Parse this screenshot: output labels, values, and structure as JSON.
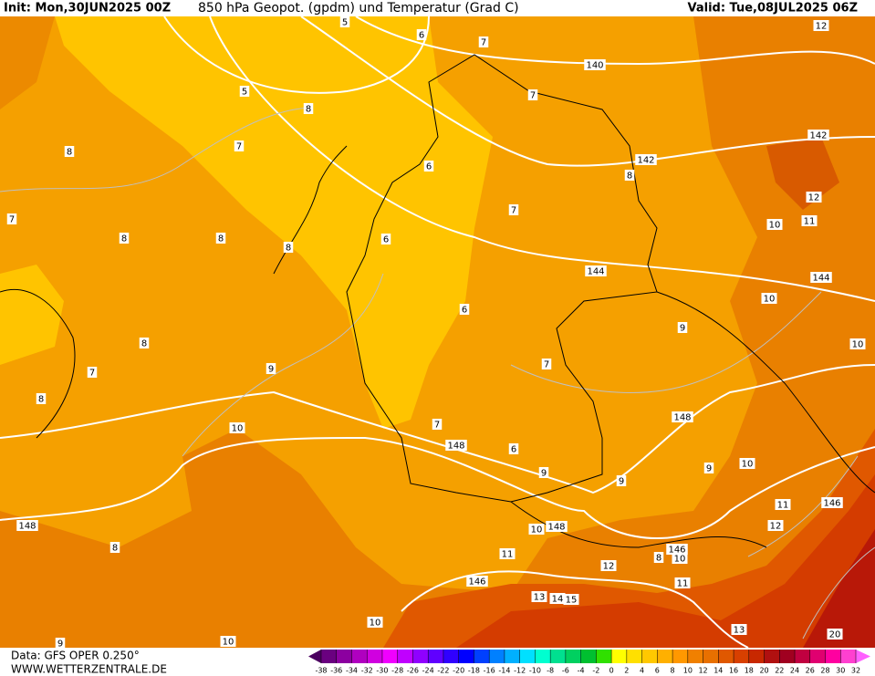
{
  "header": {
    "init": "Init: Mon,30JUN2025 00Z",
    "title": "850 hPa Geopot. (gpdm) und Temperatur (Grad C)",
    "valid": "Valid: Tue,08JUL2025 06Z"
  },
  "footer": {
    "source": "Data: GFS OPER 0.250°",
    "website": "WWW.WETTERZENTRALE.DE"
  },
  "contour_labels": [
    "5",
    "6",
    "7",
    "140",
    "12",
    "5",
    "8",
    "7",
    "7",
    "8",
    "6",
    "142",
    "142",
    "8",
    "12",
    "7",
    "7",
    "10",
    "11",
    "8",
    "8",
    "8",
    "6",
    "144",
    "144",
    "10",
    "6",
    "9",
    "10",
    "8",
    "7",
    "9",
    "7",
    "8",
    "148",
    "10",
    "7",
    "148",
    "6",
    "9",
    "9",
    "9",
    "10",
    "146",
    "11",
    "12",
    "148",
    "8",
    "10",
    "148",
    "146",
    "8",
    "10",
    "11",
    "12",
    "11",
    "146",
    "13",
    "14",
    "15",
    "10",
    "13",
    "20",
    "10",
    "9"
  ],
  "legend": {
    "ticks": [
      -38,
      -36,
      -34,
      -32,
      -30,
      -28,
      -26,
      -24,
      -22,
      -20,
      -18,
      -16,
      -14,
      -12,
      -10,
      -8,
      -6,
      -4,
      -2,
      0,
      2,
      4,
      6,
      8,
      10,
      12,
      14,
      16,
      18,
      20,
      22,
      24,
      26,
      28,
      30,
      32
    ],
    "colors": [
      "#4b0060",
      "#6a0080",
      "#8c00a0",
      "#b000c0",
      "#d000e0",
      "#f000ff",
      "#c000ff",
      "#9000ff",
      "#6000ff",
      "#3000ff",
      "#0000ff",
      "#0040ff",
      "#0080ff",
      "#00b0ff",
      "#00e0ff",
      "#00ffd0",
      "#00e090",
      "#00d060",
      "#00c030",
      "#30e000",
      "#ffff00",
      "#ffe000",
      "#ffc800",
      "#ffb000",
      "#ff9800",
      "#f08000",
      "#e87000",
      "#e05800",
      "#d84000",
      "#c82800",
      "#b01010",
      "#a00020",
      "#c00040",
      "#e00070",
      "#ff00a0",
      "#ff40d0",
      "#ff60ff"
    ]
  }
}
